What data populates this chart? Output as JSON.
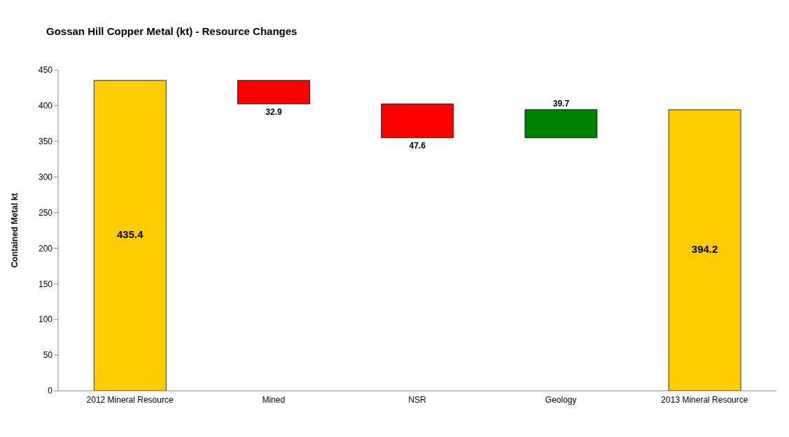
{
  "chart_data": {
    "type": "bar",
    "title": "Gossan Hill Copper Metal (kt) - Resource Changes",
    "ylabel": "Contained Metal kt",
    "categories": [
      "2012 Mineral Resource",
      "Mined",
      "NSR",
      "Geology",
      "2013 Mineral Resource"
    ],
    "values": [
      435.4,
      32.9,
      47.6,
      39.7,
      394.2
    ],
    "base": [
      0,
      402.5,
      354.9,
      354.9,
      0
    ],
    "colors": [
      "#ffcc00",
      "#ff0000",
      "#ff0000",
      "#008000",
      "#ffcc00"
    ],
    "ylim": [
      0,
      450
    ],
    "yticks": [
      0,
      50,
      100,
      150,
      200,
      250,
      300,
      350,
      400,
      450
    ],
    "grid": false,
    "data_labels": true
  }
}
